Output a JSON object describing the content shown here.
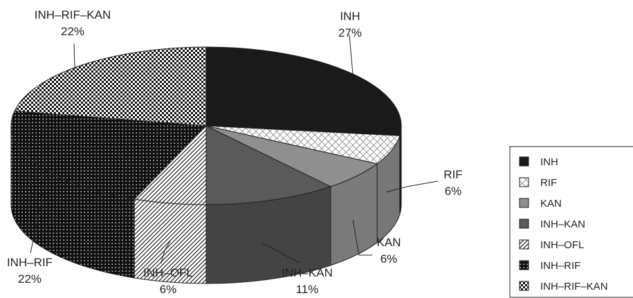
{
  "chart_data": {
    "type": "pie",
    "title": "",
    "categories": [
      "INH",
      "RIF",
      "KAN",
      "INH–KAN",
      "INH–OFL",
      "INH–RIF",
      "INH–RIF–KAN"
    ],
    "values": [
      27,
      6,
      6,
      11,
      6,
      22,
      22
    ],
    "value_labels": [
      "27%",
      "6%",
      "6%",
      "11%",
      "6%",
      "22%",
      "22%"
    ],
    "legend": {
      "placement": "right",
      "entries": [
        "INH",
        "RIF",
        "KAN",
        "INH–KAN",
        "INH–OFL",
        "INH–RIF",
        "INH–RIF–KAN"
      ]
    },
    "three_d": true,
    "patterns": [
      "solid-black",
      "light-crosshatch",
      "light-gray",
      "dark-gray",
      "diagonal-stripes",
      "black-dots",
      "checker"
    ]
  }
}
